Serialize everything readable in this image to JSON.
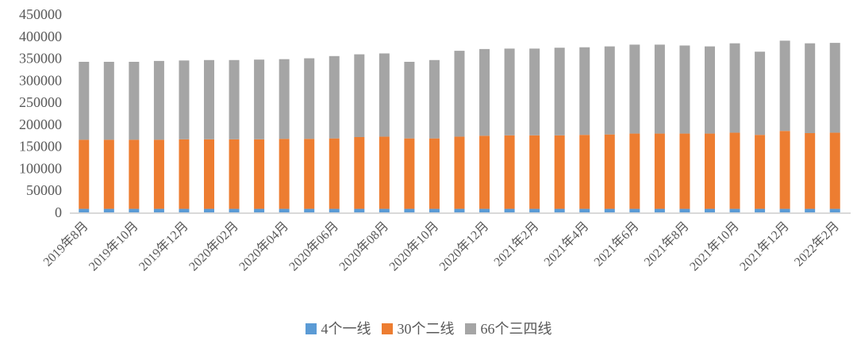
{
  "chart_data": {
    "type": "bar",
    "stacked": true,
    "title": "",
    "xlabel": "",
    "ylabel": "",
    "n_bars": 31,
    "x_tick_labels": [
      "2019年8月",
      "2019年10月",
      "2019年12月",
      "2020年02月",
      "2020年04月",
      "2020年06月",
      "2020年08月",
      "2020年10月",
      "2020年12月",
      "2021年2月",
      "2021年4月",
      "2021年6月",
      "2021年8月",
      "2021年10月",
      "2021年12月",
      "2022年2月"
    ],
    "x_tick_bar_indices": [
      0,
      2,
      4,
      6,
      8,
      10,
      12,
      14,
      16,
      18,
      20,
      22,
      24,
      26,
      28,
      30
    ],
    "series": [
      {
        "name": "4个一线",
        "color": "#5B9BD5",
        "values": [
          8000,
          8000,
          8000,
          8000,
          8000,
          8000,
          8000,
          8000,
          8000,
          8000,
          8000,
          8000,
          8000,
          8000,
          8000,
          8000,
          8000,
          8000,
          8000,
          8000,
          8000,
          8000,
          8000,
          8000,
          8000,
          8000,
          8000,
          8000,
          8000,
          8000,
          8000
        ]
      },
      {
        "name": "30个二线",
        "color": "#ED7D31",
        "values": [
          157000,
          157000,
          157000,
          157000,
          158000,
          158000,
          158000,
          158000,
          159000,
          159000,
          160000,
          163000,
          164000,
          160000,
          160000,
          164000,
          166000,
          167000,
          167000,
          167000,
          168000,
          169000,
          171000,
          171000,
          171000,
          171000,
          173000,
          168000,
          177000,
          172000,
          173000
        ]
      },
      {
        "name": "66个三四线",
        "color": "#A5A5A5",
        "values": [
          177000,
          177000,
          177000,
          179000,
          179000,
          180000,
          180000,
          181000,
          181000,
          183000,
          187000,
          188000,
          189000,
          174000,
          178000,
          195000,
          197000,
          197000,
          197000,
          199000,
          199000,
          200000,
          202000,
          202000,
          200000,
          198000,
          203000,
          189000,
          205000,
          204000,
          204000
        ]
      }
    ],
    "ylim": [
      0,
      450000
    ],
    "y_ticks": [
      0,
      50000,
      100000,
      150000,
      200000,
      250000,
      300000,
      350000,
      400000,
      450000
    ],
    "grid": false,
    "legend_position": "bottom",
    "axis_line_color": "#D9D9D9",
    "label_color": "#595959"
  }
}
